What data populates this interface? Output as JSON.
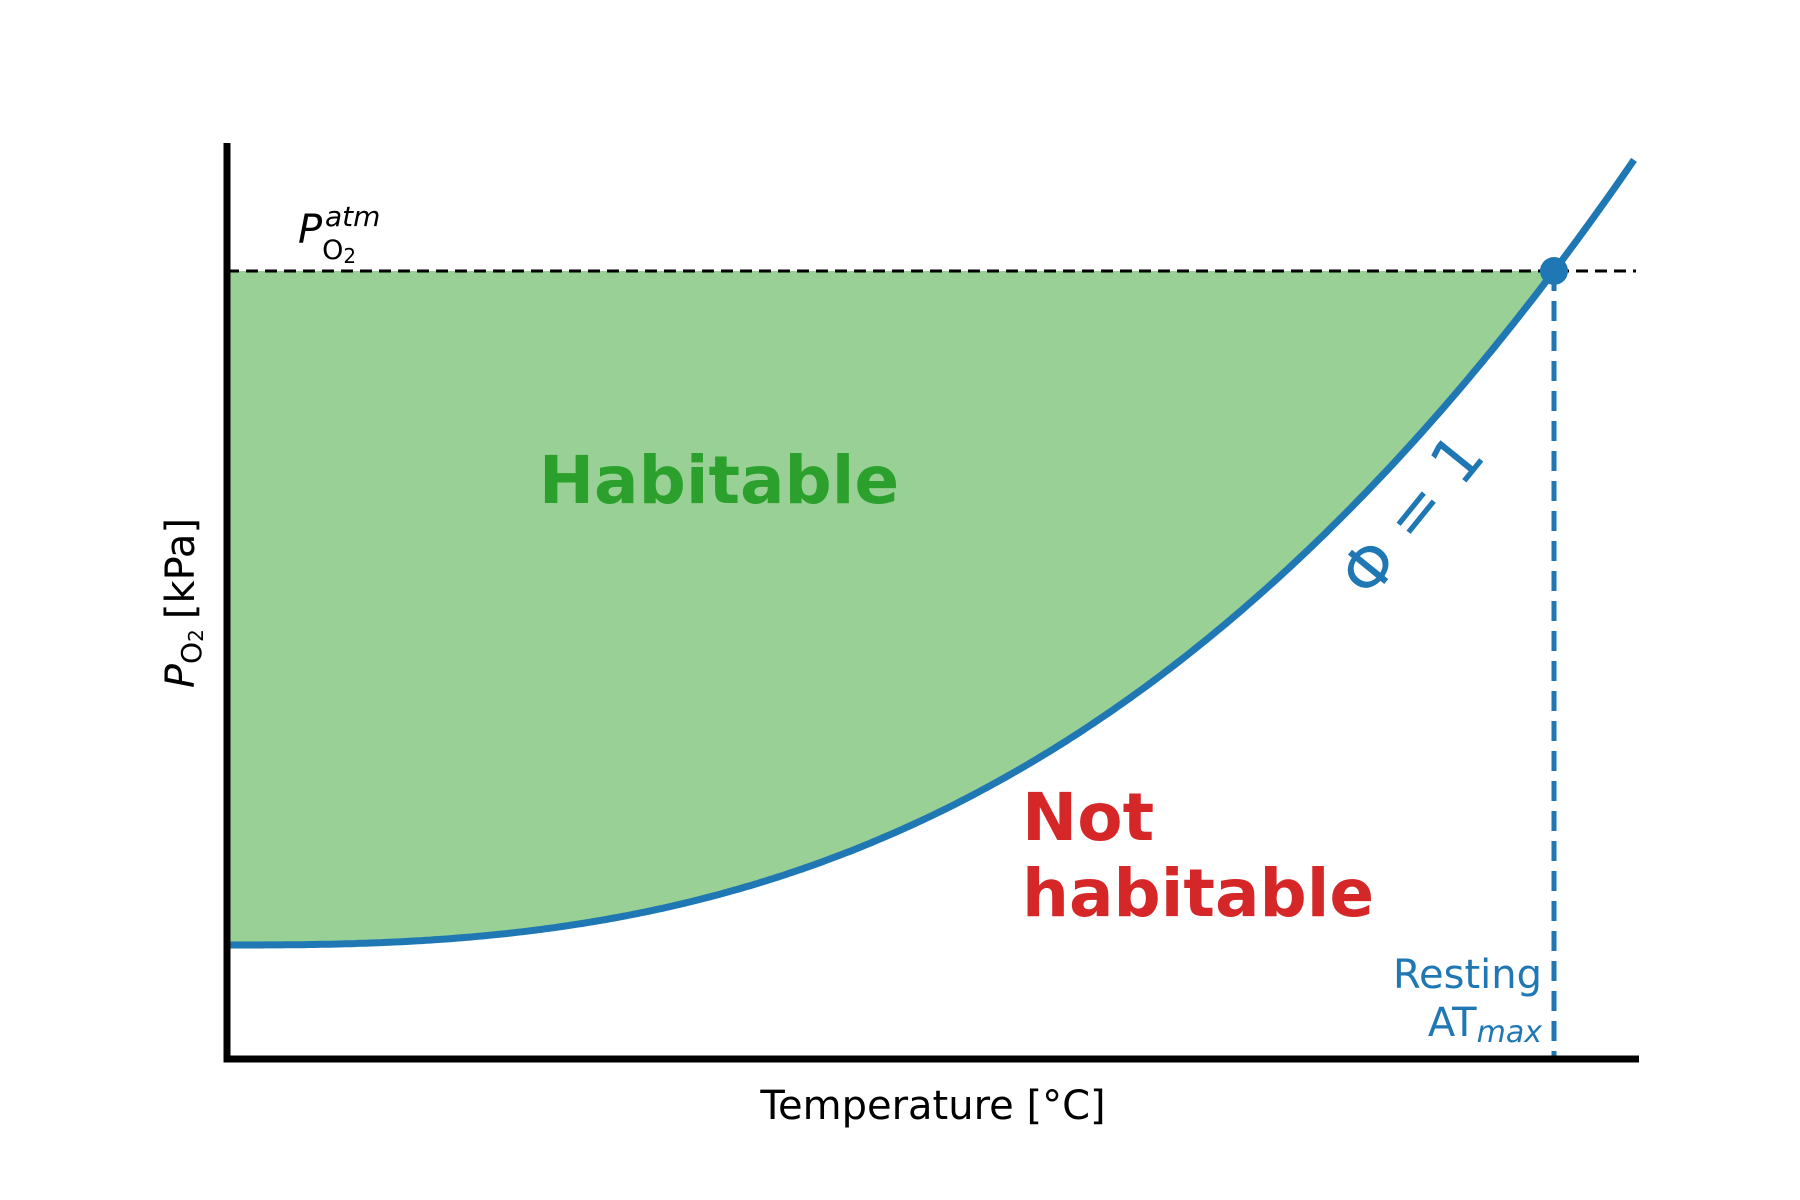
{
  "axes": {
    "x_label": "Temperature [°C]",
    "y_label": {
      "symbol": "P",
      "sub": "O",
      "subsub": "2",
      "unit": "[kPa]"
    }
  },
  "reference_line": {
    "symbol": "P",
    "sub": "O",
    "subsub": "2",
    "sup": "atm"
  },
  "curve_label": "Φ = 1",
  "regions": {
    "inside": "Habitable",
    "outside": [
      "Not",
      "habitable"
    ]
  },
  "limit_label": {
    "line1": "Resting",
    "base": "AT",
    "sub": "max"
  }
}
